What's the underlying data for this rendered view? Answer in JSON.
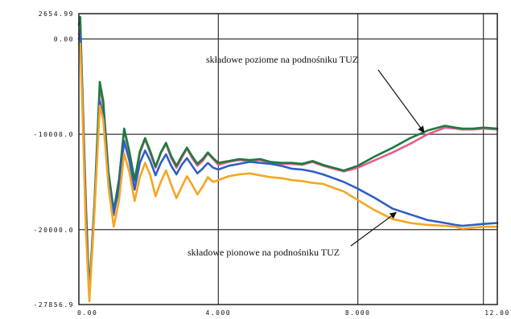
{
  "chart_data": {
    "type": "line",
    "title": "",
    "xlabel": "",
    "ylabel": "",
    "xlim": [
      0.0,
      12.0
    ],
    "ylim": [
      -27856.9,
      2654.99
    ],
    "x_ticks": [
      {
        "value": 0.0,
        "label": "0.00"
      },
      {
        "value": 4.0,
        "label": "4.000"
      },
      {
        "value": 8.0,
        "label": "8.000"
      },
      {
        "value": 12.0,
        "label": "12.00"
      }
    ],
    "y_ticks": [
      {
        "value": 2654.99,
        "label": "2654.99",
        "gridline": false
      },
      {
        "value": 0.0,
        "label": "0.00",
        "gridline": true
      },
      {
        "value": -10000.0,
        "label": "-10000.0",
        "gridline": true
      },
      {
        "value": -20000.0,
        "label": "-20000.0",
        "gridline": true
      },
      {
        "value": -27856.9,
        "label": "-27856.9",
        "gridline": false
      }
    ],
    "grid": true,
    "legend": "none",
    "series": [
      {
        "color": "#e85a8c",
        "x": [
          0.0,
          0.04,
          0.1,
          0.2,
          0.3,
          0.45,
          0.6,
          0.7,
          0.85,
          1.0,
          1.15,
          1.3,
          1.45,
          1.6,
          1.75,
          1.9,
          2.05,
          2.2,
          2.35,
          2.5,
          2.65,
          2.8,
          2.95,
          3.1,
          3.25,
          3.4,
          3.55,
          3.7,
          3.85,
          4.0,
          4.3,
          4.6,
          4.9,
          5.2,
          5.5,
          5.8,
          6.1,
          6.4,
          6.7,
          7.0,
          7.3,
          7.6,
          8.0,
          8.5,
          9.0,
          9.5,
          10.0,
          10.5,
          10.8,
          11.0,
          11.3,
          11.6,
          12.0
        ],
        "y": [
          500,
          1000,
          -5000,
          -17000,
          -27000,
          -17500,
          -5000,
          -7000,
          -14500,
          -18500,
          -15000,
          -9500,
          -12000,
          -15000,
          -12000,
          -10500,
          -12000,
          -13500,
          -12000,
          -11000,
          -12500,
          -13500,
          -12500,
          -11500,
          -12500,
          -13300,
          -12800,
          -12000,
          -12600,
          -13200,
          -12900,
          -12700,
          -12800,
          -12700,
          -13000,
          -13100,
          -13100,
          -13200,
          -12900,
          -13300,
          -13600,
          -13900,
          -13500,
          -12700,
          -11900,
          -11000,
          -10000,
          -9300,
          -9400,
          -9500,
          -9500,
          -9400,
          -9500
        ]
      },
      {
        "color": "#1e7a3e",
        "x": [
          0.0,
          0.04,
          0.1,
          0.2,
          0.3,
          0.45,
          0.6,
          0.7,
          0.85,
          1.0,
          1.15,
          1.3,
          1.45,
          1.6,
          1.75,
          1.9,
          2.05,
          2.2,
          2.35,
          2.5,
          2.65,
          2.8,
          2.95,
          3.1,
          3.25,
          3.4,
          3.55,
          3.7,
          3.85,
          4.0,
          4.3,
          4.6,
          4.9,
          5.2,
          5.5,
          5.8,
          6.1,
          6.4,
          6.7,
          7.0,
          7.3,
          7.6,
          8.0,
          8.5,
          9.0,
          9.5,
          10.0,
          10.5,
          10.8,
          11.0,
          11.3,
          11.6,
          12.0
        ],
        "y": [
          1500,
          2300,
          -5500,
          -18000,
          -26500,
          -17000,
          -4500,
          -6500,
          -14000,
          -18000,
          -14800,
          -9400,
          -11800,
          -14800,
          -11800,
          -10400,
          -11800,
          -13400,
          -11900,
          -10900,
          -12300,
          -13300,
          -12300,
          -11400,
          -12300,
          -13100,
          -12600,
          -11900,
          -12500,
          -13000,
          -12800,
          -12600,
          -12700,
          -12600,
          -12900,
          -13000,
          -13000,
          -13100,
          -12800,
          -13200,
          -13500,
          -13800,
          -13300,
          -12300,
          -11400,
          -10400,
          -9600,
          -9100,
          -9300,
          -9400,
          -9400,
          -9300,
          -9400
        ]
      },
      {
        "color": "#2f5fc4",
        "x": [
          0.0,
          0.04,
          0.1,
          0.2,
          0.3,
          0.45,
          0.6,
          0.7,
          0.85,
          1.0,
          1.15,
          1.3,
          1.45,
          1.6,
          1.75,
          1.9,
          2.05,
          2.2,
          2.35,
          2.5,
          2.65,
          2.8,
          2.95,
          3.1,
          3.25,
          3.4,
          3.55,
          3.7,
          3.85,
          4.0,
          4.3,
          4.6,
          4.9,
          5.2,
          5.5,
          5.8,
          6.1,
          6.4,
          6.7,
          7.0,
          7.3,
          7.6,
          8.0,
          8.5,
          9.0,
          9.5,
          10.0,
          10.5,
          10.8,
          11.0,
          11.3,
          11.6,
          12.0
        ],
        "y": [
          0,
          500,
          -6000,
          -19000,
          -27000,
          -17500,
          -6500,
          -8000,
          -14800,
          -18300,
          -15800,
          -10700,
          -12800,
          -15800,
          -13000,
          -11700,
          -12800,
          -14300,
          -13000,
          -12100,
          -13300,
          -14200,
          -13200,
          -12500,
          -13300,
          -14100,
          -13600,
          -13000,
          -13500,
          -13700,
          -13300,
          -13100,
          -12900,
          -13000,
          -13100,
          -13300,
          -13600,
          -13700,
          -13900,
          -14200,
          -14600,
          -15000,
          -15700,
          -16700,
          -17800,
          -18400,
          -19000,
          -19300,
          -19500,
          -19600,
          -19500,
          -19400,
          -19300
        ]
      },
      {
        "color": "#f5a623",
        "x": [
          0.0,
          0.04,
          0.1,
          0.2,
          0.3,
          0.45,
          0.6,
          0.7,
          0.85,
          1.0,
          1.15,
          1.3,
          1.45,
          1.6,
          1.75,
          1.9,
          2.05,
          2.2,
          2.35,
          2.5,
          2.65,
          2.8,
          2.95,
          3.1,
          3.25,
          3.4,
          3.55,
          3.7,
          3.85,
          4.0,
          4.3,
          4.6,
          4.9,
          5.2,
          5.5,
          5.8,
          6.1,
          6.4,
          6.7,
          7.0,
          7.3,
          7.6,
          8.0,
          8.5,
          9.0,
          9.5,
          10.0,
          10.5,
          10.8,
          11.0,
          11.3,
          11.6,
          12.0
        ],
        "y": [
          -500,
          -500,
          -7000,
          -20000,
          -27500,
          -18000,
          -7000,
          -8500,
          -15500,
          -19700,
          -17000,
          -12000,
          -14000,
          -17000,
          -14500,
          -13000,
          -14300,
          -16500,
          -15000,
          -13800,
          -15300,
          -16700,
          -15500,
          -14400,
          -15300,
          -16300,
          -15500,
          -14500,
          -15000,
          -14800,
          -14400,
          -14200,
          -14100,
          -14300,
          -14500,
          -14600,
          -14800,
          -14900,
          -15100,
          -15200,
          -15600,
          -16000,
          -16900,
          -18000,
          -18900,
          -19300,
          -19500,
          -19600,
          -19700,
          -19900,
          -19800,
          -19700,
          -19700
        ]
      }
    ],
    "annotations": [
      {
        "text": "składowe poziome na podnośniku TUZ",
        "target_x": 9.9,
        "target_y": -9800
      },
      {
        "text": "składowe pionowe na podnośniku TUZ",
        "target_x": 9.1,
        "target_y": -18200
      }
    ]
  }
}
